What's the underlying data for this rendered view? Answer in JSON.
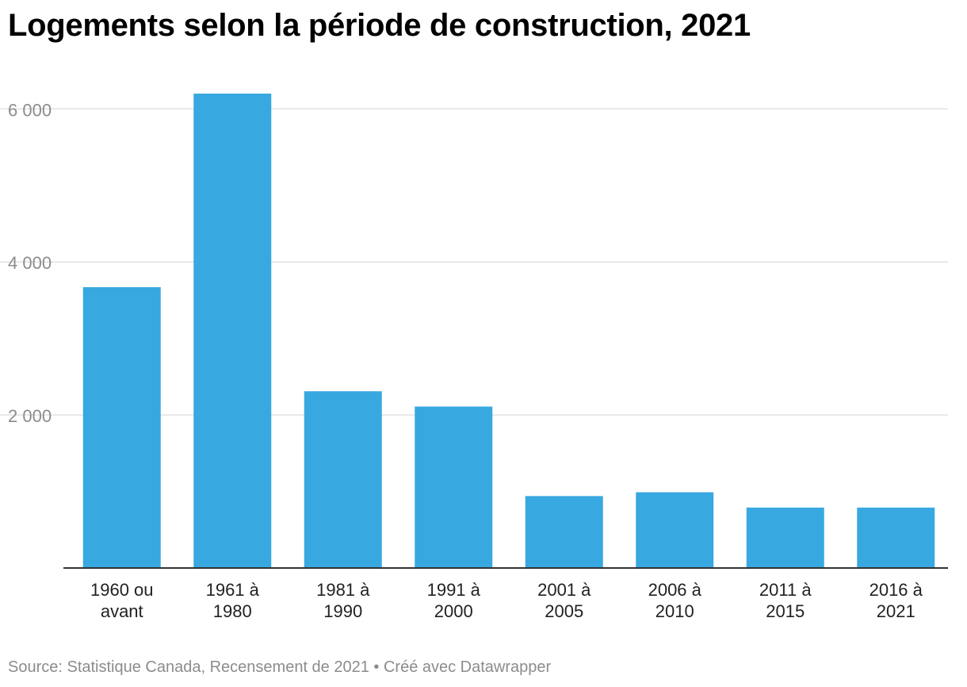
{
  "chart_data": {
    "type": "bar",
    "title": "Logements selon la période de construction, 2021",
    "categories": [
      [
        "1960 ou",
        "avant"
      ],
      [
        "1961 à",
        "1980"
      ],
      [
        "1981 à",
        "1990"
      ],
      [
        "1991 à",
        "2000"
      ],
      [
        "2001 à",
        "2005"
      ],
      [
        "2006 à",
        "2010"
      ],
      [
        "2011 à",
        "2015"
      ],
      [
        "2016 à",
        "2021"
      ]
    ],
    "values": [
      3670,
      6200,
      2310,
      2110,
      940,
      990,
      790,
      790
    ],
    "xlabel": "",
    "ylabel": "",
    "ylim": [
      0,
      6200
    ],
    "yticks": [
      0,
      2000,
      4000,
      6000
    ],
    "ytick_labels": [
      "",
      "2 000",
      "4 000",
      "6 000"
    ],
    "grid": true,
    "legend": "none",
    "colors": {
      "bar": "#38a8e0",
      "grid": "#e2e2e2",
      "axis": "#333333",
      "tick_label": "#8c8c8c",
      "category_label": "#222222"
    }
  },
  "footer": {
    "source": "Source: Statistique Canada, Recensement de 2021 • Créé avec Datawrapper"
  }
}
